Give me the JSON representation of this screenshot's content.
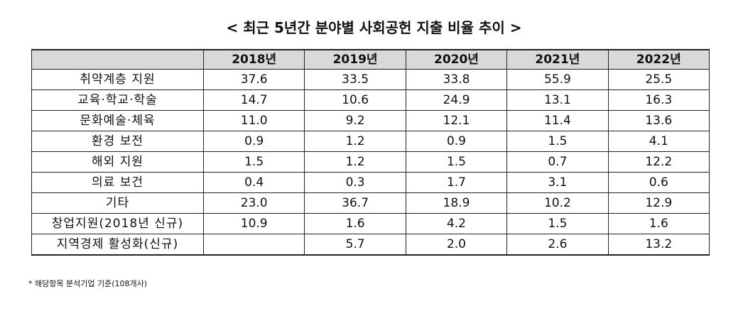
{
  "title": "< 최근 5년간 분야별 사회공헌 지출 비율 추이 >",
  "table": {
    "corner": "",
    "years": [
      "2018년",
      "2019년",
      "2020년",
      "2021년",
      "2022년"
    ],
    "rows": [
      {
        "label": "취약계층 지원",
        "values": [
          "37.6",
          "33.5",
          "33.8",
          "55.9",
          "25.5"
        ]
      },
      {
        "label": "교육·학교·학술",
        "values": [
          "14.7",
          "10.6",
          "24.9",
          "13.1",
          "16.3"
        ]
      },
      {
        "label": "문화예술·체육",
        "values": [
          "11.0",
          "9.2",
          "12.1",
          "11.4",
          "13.6"
        ]
      },
      {
        "label": "환경 보전",
        "values": [
          "0.9",
          "1.2",
          "0.9",
          "1.5",
          "4.1"
        ]
      },
      {
        "label": "해외 지원",
        "values": [
          "1.5",
          "1.2",
          "1.5",
          "0.7",
          "12.2"
        ]
      },
      {
        "label": "의료 보건",
        "values": [
          "0.4",
          "0.3",
          "1.7",
          "3.1",
          "0.6"
        ]
      },
      {
        "label": "기타",
        "values": [
          "23.0",
          "36.7",
          "18.9",
          "10.2",
          "12.9"
        ]
      },
      {
        "label": "창업지원(2018년 신규)",
        "values": [
          "10.9",
          "1.6",
          "4.2",
          "1.5",
          "1.6"
        ]
      },
      {
        "label": "지역경제 활성화(신규)",
        "values": [
          "",
          "5.7",
          "2.0",
          "2.6",
          "13.2"
        ]
      }
    ]
  },
  "footnote": "* 해당항목 분석기업 기준(108개사)"
}
